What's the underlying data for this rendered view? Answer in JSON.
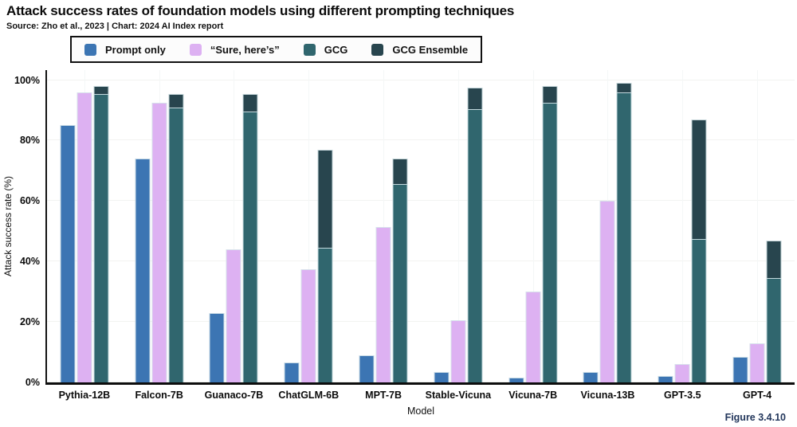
{
  "page": {
    "title": "Attack success rates of foundation models using different prompting techniques",
    "source_note": "Source: Zho et al., 2023 | Chart: 2024 AI Index report",
    "figure_label": "Figure 3.4.10"
  },
  "chart_data": {
    "type": "bar",
    "variant": "grouped; GCG and GCG Ensemble share one slot with the darker GCG Ensemble bar drawn behind/above the GCG bar",
    "title": "Attack success rates of foundation models using different prompting techniques",
    "xlabel": "Model",
    "ylabel": "Attack success rate (%)",
    "ylim": [
      0,
      100
    ],
    "yticks": [
      0,
      20,
      40,
      60,
      80,
      100
    ],
    "ytick_labels": [
      "0%",
      "20%",
      "40%",
      "60%",
      "80%",
      "100%"
    ],
    "grid": "faint horizontal lines at each ytick; faint vertical line at each category center",
    "legend_position": "top-left",
    "categories": [
      "Pythia-12B",
      "Falcon-7B",
      "Guanaco-7B",
      "ChatGLM-6B",
      "MPT-7B",
      "Stable-Vicuna",
      "Vicuna-7B",
      "Vicuna-13B",
      "GPT-3.5",
      "GPT-4"
    ],
    "series": [
      {
        "name": "Prompt only",
        "color": "#3c75b3",
        "values": [
          85,
          74,
          23,
          6.5,
          9,
          3.5,
          1.5,
          3.5,
          2,
          8.5
        ]
      },
      {
        "name": "“Sure, here’s”",
        "color": "#ddb1f2",
        "values": [
          96,
          92.5,
          44,
          37.5,
          51.5,
          20.5,
          30,
          60,
          6,
          13
        ]
      },
      {
        "name": "GCG",
        "color": "#30666e",
        "values": [
          95.5,
          91,
          89.5,
          44.5,
          65.5,
          90.5,
          92.5,
          96,
          47.5,
          34.5
        ]
      },
      {
        "name": "GCG Ensemble",
        "color": "#28454e",
        "values": [
          98,
          95.5,
          95.5,
          77,
          74,
          97.5,
          98,
          99,
          87,
          47
        ]
      }
    ]
  }
}
